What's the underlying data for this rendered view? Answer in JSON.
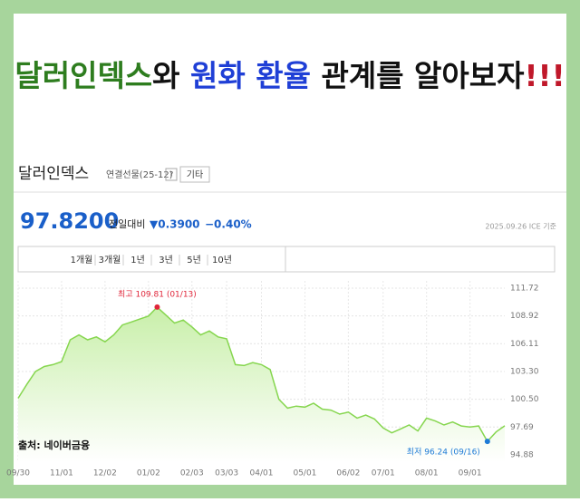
{
  "banner": {
    "title_parts": [
      {
        "text": "달러인덱스",
        "color": "#2e7d1f"
      },
      {
        "text": "와 ",
        "color": "#111111"
      },
      {
        "text": "원화 환율",
        "color": "#1f3fd6"
      },
      {
        "text": " 관계를 알아보자",
        "color": "#111111"
      },
      {
        "text": "!!!",
        "color": "#c0182a"
      }
    ]
  },
  "header": {
    "name": "달러인덱스",
    "contract": "연결선물(25-12)",
    "help": "?",
    "more": "기타",
    "price": "97.8200",
    "change_label": "전일대비",
    "change": "▼0.3900",
    "change_pct": "−0.40%",
    "asof": "2025.09.26 ICE 기준"
  },
  "tabs": [
    "1개월",
    "3개월",
    "1년",
    "3년",
    "5년",
    "10년"
  ],
  "source": "출처: 네이버금융",
  "chart_data": {
    "type": "line",
    "categories": [
      "09/30",
      null,
      null,
      null,
      null,
      "11/01",
      null,
      null,
      null,
      null,
      "12/02",
      null,
      null,
      null,
      null,
      "01/02",
      null,
      null,
      null,
      null,
      "02/03",
      null,
      null,
      null,
      "03/03",
      null,
      null,
      null,
      "04/01",
      null,
      null,
      null,
      null,
      "05/01",
      null,
      null,
      null,
      null,
      "06/02",
      null,
      null,
      null,
      "07/01",
      null,
      null,
      null,
      null,
      "08/01",
      null,
      null,
      null,
      null,
      "09/01",
      null,
      null,
      null,
      null
    ],
    "series": [
      {
        "name": "달러인덱스",
        "color": "#86d64f",
        "values": [
          100.6,
          102.0,
          103.3,
          103.8,
          104.0,
          104.3,
          106.5,
          107.0,
          106.5,
          106.8,
          106.3,
          107.0,
          108.0,
          108.3,
          108.6,
          108.9,
          109.81,
          109.0,
          108.2,
          108.5,
          107.8,
          107.0,
          107.4,
          106.8,
          106.6,
          104.0,
          103.9,
          104.2,
          104.0,
          103.5,
          100.5,
          99.6,
          99.8,
          99.7,
          100.1,
          99.5,
          99.4,
          99.0,
          99.2,
          98.6,
          98.9,
          98.5,
          97.6,
          97.1,
          97.5,
          97.9,
          97.3,
          98.6,
          98.3,
          97.9,
          98.2,
          97.8,
          97.7,
          97.8,
          96.24,
          97.2,
          97.82
        ]
      }
    ],
    "annotations": [
      {
        "text": "최고 109.81 (01/13)",
        "index": 16,
        "color": "#e0263a"
      },
      {
        "text": "최저 96.24 (09/16)",
        "index": 54,
        "color": "#1e7bd6"
      }
    ],
    "ylim": [
      94.88,
      111.72
    ],
    "yticks": [
      111.72,
      108.92,
      106.11,
      {
        "value": 103.3,
        "label": "103.30"
      },
      {
        "value": 100.5,
        "label": "100.50"
      },
      97.69,
      94.88
    ],
    "grid": true
  }
}
